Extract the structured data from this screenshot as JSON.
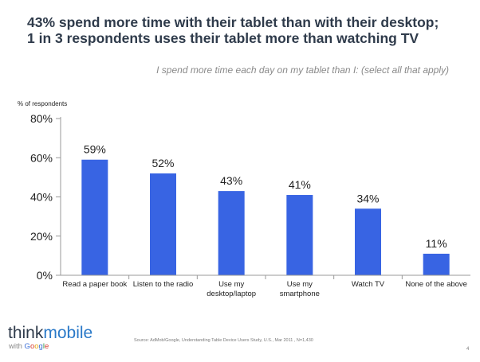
{
  "title_lines": [
    "43% spend more time with their tablet than with their desktop;",
    "1 in 3 respondents uses their tablet more than watching TV"
  ],
  "subtitle": "I spend more time each day on my tablet than I: (select all that apply)",
  "source": "Source: AdMob/Google, Understanding Table Device Users Study, U.S., Mar 2011 , N=1,430",
  "page_number": "4",
  "logo": {
    "think": "think",
    "mobile": "mobile",
    "with": "with",
    "google_letters": [
      "G",
      "o",
      "o",
      "g",
      "l",
      "e"
    ]
  },
  "chart_data": {
    "type": "bar",
    "ylabel": "% of respondents",
    "ylim": [
      0,
      80
    ],
    "yticks": [
      "0%",
      "20%",
      "40%",
      "60%",
      "80%"
    ],
    "ytick_values": [
      0,
      20,
      40,
      60,
      80
    ],
    "categories": [
      [
        "Read a paper book"
      ],
      [
        "Listen to the radio"
      ],
      [
        "Use my",
        "desktop/laptop"
      ],
      [
        "Use my",
        "smartphone"
      ],
      [
        "Watch TV"
      ],
      [
        "None of the above"
      ]
    ],
    "values": [
      59,
      52,
      43,
      41,
      34,
      11
    ],
    "value_labels": [
      "59%",
      "52%",
      "43%",
      "41%",
      "34%",
      "11%"
    ],
    "grid": false,
    "legend": "none",
    "bar_color": "#3864e3"
  }
}
